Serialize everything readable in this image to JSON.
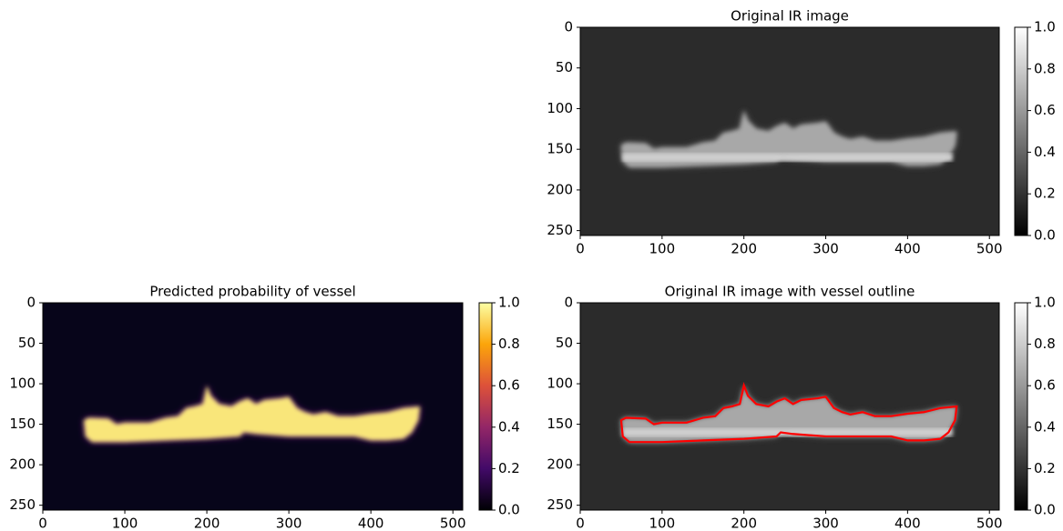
{
  "chart_data": [
    {
      "type": "image",
      "title": "Original IR image",
      "cmap": "gray",
      "xlim": [
        0,
        512
      ],
      "ylim": [
        256,
        0
      ],
      "xticks": [
        0,
        100,
        200,
        300,
        400,
        500
      ],
      "yticks": [
        0,
        50,
        100,
        150,
        200,
        250
      ],
      "colorbar": {
        "lim": [
          0,
          1
        ],
        "ticks": [
          {
            "value": 0,
            "label": "0.0"
          },
          0.2,
          0.4,
          0.6,
          0.8,
          {
            "value": 1,
            "label": "1.0"
          }
        ]
      }
    },
    {
      "type": "image",
      "title": "Predicted probability of vessel",
      "cmap": "inferno",
      "xlim": [
        0,
        512
      ],
      "ylim": [
        256,
        0
      ],
      "xticks": [
        0,
        100,
        200,
        300,
        400,
        500
      ],
      "yticks": [
        0,
        50,
        100,
        150,
        200,
        250
      ],
      "colorbar": {
        "lim": [
          0,
          1
        ],
        "ticks": [
          {
            "value": 0,
            "label": "0.0"
          },
          0.2,
          0.4,
          0.6,
          0.8,
          {
            "value": 1,
            "label": "1.0"
          }
        ]
      }
    },
    {
      "type": "image",
      "title": "Original IR image with vessel outline",
      "cmap": "gray",
      "outline": true,
      "outline_color": "#ff0000",
      "xlim": [
        0,
        512
      ],
      "ylim": [
        256,
        0
      ],
      "xticks": [
        0,
        100,
        200,
        300,
        400,
        500
      ],
      "yticks": [
        0,
        50,
        100,
        150,
        200,
        250
      ],
      "colorbar": {
        "lim": [
          0,
          1
        ],
        "ticks": [
          {
            "value": 0,
            "label": "0.0"
          },
          0.2,
          0.4,
          0.6,
          0.8,
          {
            "value": 1,
            "label": "1.0"
          }
        ]
      }
    }
  ]
}
